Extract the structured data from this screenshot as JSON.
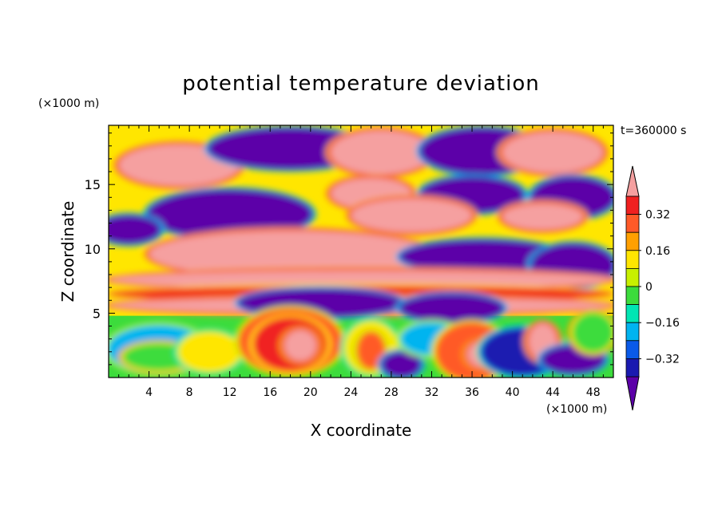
{
  "chart_data": {
    "type": "heatmap",
    "title": "potential temperature deviation",
    "time_label": "t=360000 s",
    "xlabel": "X coordinate",
    "ylabel": "Z coordinate",
    "x_unit": "(×1000 m)",
    "y_unit": "(×1000 m)",
    "xlim": [
      0,
      50
    ],
    "ylim": [
      0,
      19.6
    ],
    "x_ticks": [
      "4",
      "8",
      "12",
      "16",
      "20",
      "24",
      "28",
      "32",
      "36",
      "40",
      "44",
      "48"
    ],
    "y_ticks": [
      "5",
      "10",
      "15"
    ],
    "colorbar": {
      "levels": [
        -0.4,
        -0.32,
        -0.24,
        -0.16,
        -0.08,
        0,
        0.08,
        0.16,
        0.24,
        0.32,
        0.4
      ],
      "tick_labels": [
        "0.32",
        "0.16",
        "0",
        "−0.16",
        "−0.32"
      ],
      "colors": [
        "#5c00a8",
        "#1a1ab0",
        "#0a5ae8",
        "#00b4f0",
        "#00e6b4",
        "#3cdc3c",
        "#c8f000",
        "#ffe600",
        "#ffa000",
        "#ff5a28",
        "#f02020",
        "#f5a0a0"
      ]
    },
    "field_blobs": [
      {
        "level": 11,
        "x": 7,
        "z": 16.5,
        "rx": 6,
        "rz": 1.6
      },
      {
        "level": 0,
        "x": 18,
        "z": 17.8,
        "rx": 8,
        "rz": 1.5
      },
      {
        "level": 11,
        "x": 27,
        "z": 17.5,
        "rx": 5,
        "rz": 1.7
      },
      {
        "level": 0,
        "x": 37,
        "z": 17.6,
        "rx": 6,
        "rz": 1.7
      },
      {
        "level": 11,
        "x": 44,
        "z": 17.5,
        "rx": 5,
        "rz": 1.6
      },
      {
        "level": 0,
        "x": 12,
        "z": 12.7,
        "rx": 8,
        "rz": 1.8
      },
      {
        "level": 11,
        "x": 26,
        "z": 14.3,
        "rx": 4,
        "rz": 1.2
      },
      {
        "level": 0,
        "x": 36,
        "z": 14.2,
        "rx": 5,
        "rz": 1.3
      },
      {
        "level": 0,
        "x": 46,
        "z": 14.0,
        "rx": 4,
        "rz": 1.5
      },
      {
        "level": 11,
        "x": 30,
        "z": 12.6,
        "rx": 6,
        "rz": 1.3
      },
      {
        "level": 11,
        "x": 43,
        "z": 12.5,
        "rx": 4,
        "rz": 1.0
      },
      {
        "level": 0,
        "x": 2,
        "z": 11.5,
        "rx": 3,
        "rz": 1.0
      },
      {
        "level": 11,
        "x": 18,
        "z": 9.6,
        "rx": 14,
        "rz": 1.8
      },
      {
        "level": 0,
        "x": 37,
        "z": 9.4,
        "rx": 8,
        "rz": 1.2
      },
      {
        "level": 0,
        "x": 46,
        "z": 8.7,
        "rx": 4,
        "rz": 1.6
      },
      {
        "level": 11,
        "x": 25,
        "z": 7.6,
        "rx": 25,
        "rz": 0.7
      },
      {
        "level": 10,
        "x": 25,
        "z": 6.5,
        "rx": 25,
        "rz": 0.5
      },
      {
        "level": 11,
        "x": 25,
        "z": 5.6,
        "rx": 25,
        "rz": 0.6
      },
      {
        "level": 0,
        "x": 21,
        "z": 5.8,
        "rx": 8,
        "rz": 1.0
      },
      {
        "level": 0,
        "x": 34,
        "z": 5.4,
        "rx": 5,
        "rz": 1.0
      },
      {
        "level": 3,
        "x": 5,
        "z": 2.2,
        "rx": 5,
        "rz": 1.8
      },
      {
        "level": 5,
        "x": 5,
        "z": 1.6,
        "rx": 3.5,
        "rz": 1.0
      },
      {
        "level": 7,
        "x": 10,
        "z": 2.0,
        "rx": 3,
        "rz": 1.5
      },
      {
        "level": 9,
        "x": 18,
        "z": 2.8,
        "rx": 5,
        "rz": 2.5
      },
      {
        "level": 10,
        "x": 18,
        "z": 2.6,
        "rx": 3.5,
        "rz": 2.0
      },
      {
        "level": 11,
        "x": 19,
        "z": 2.5,
        "rx": 1.6,
        "rz": 1.2
      },
      {
        "level": 7,
        "x": 26,
        "z": 2.3,
        "rx": 2.5,
        "rz": 2.0
      },
      {
        "level": 9,
        "x": 26,
        "z": 2.1,
        "rx": 1.3,
        "rz": 1.4
      },
      {
        "level": 0,
        "x": 29,
        "z": 1.0,
        "rx": 1.8,
        "rz": 0.9
      },
      {
        "level": 3,
        "x": 32,
        "z": 3.0,
        "rx": 3,
        "rz": 1.2
      },
      {
        "level": 9,
        "x": 36,
        "z": 2.0,
        "rx": 3.5,
        "rz": 2.2
      },
      {
        "level": 11,
        "x": 37,
        "z": 1.8,
        "rx": 1.5,
        "rz": 1.0
      },
      {
        "level": 1,
        "x": 41,
        "z": 2.0,
        "rx": 4,
        "rz": 1.8
      },
      {
        "level": 11,
        "x": 43,
        "z": 2.8,
        "rx": 1.4,
        "rz": 1.4
      },
      {
        "level": 0,
        "x": 46,
        "z": 1.4,
        "rx": 3,
        "rz": 1.0
      },
      {
        "level": 5,
        "x": 48,
        "z": 3.5,
        "rx": 2,
        "rz": 1.5
      }
    ]
  }
}
